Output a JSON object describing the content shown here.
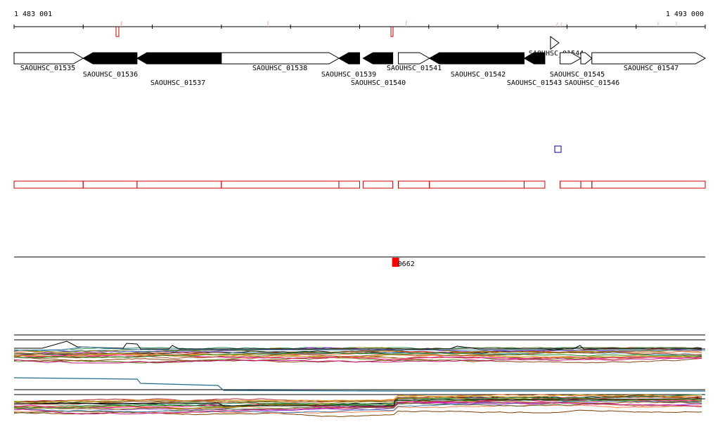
{
  "coordinates": {
    "start": "1 483 001",
    "end": "1 493 000"
  },
  "colors": {
    "gene_forward_fill": "#ffffff",
    "gene_reverse_fill": "#000000",
    "feature_outline": "#cc0000",
    "marker_fill": "#ff0000",
    "small_box": "#0000aa",
    "track_line": "#000000"
  },
  "genes": [
    {
      "name": "SAOUHSC_01535",
      "start": 1483001,
      "end": 1484000,
      "strand": "+"
    },
    {
      "name": "SAOUHSC_01536",
      "start": 1484000,
      "end": 1484780,
      "strand": "-"
    },
    {
      "name": "SAOUHSC_01537",
      "start": 1484780,
      "end": 1486000,
      "strand": "-"
    },
    {
      "name": "SAOUHSC_01538",
      "start": 1486000,
      "end": 1487700,
      "strand": "+"
    },
    {
      "name": "SAOUHSC_01539",
      "start": 1487700,
      "end": 1488000,
      "strand": "-"
    },
    {
      "name": "SAOUHSC_01540",
      "start": 1488050,
      "end": 1488480,
      "strand": "-"
    },
    {
      "name": "SAOUHSC_01541",
      "start": 1488560,
      "end": 1489010,
      "strand": "+"
    },
    {
      "name": "SAOUHSC_01542",
      "start": 1489010,
      "end": 1490380,
      "strand": "-"
    },
    {
      "name": "SAOUHSC_01543",
      "start": 1490380,
      "end": 1490680,
      "strand": "-"
    },
    {
      "name": "SAOUHSC_01544",
      "start": 1490680,
      "end": 1490800,
      "strand": "+"
    },
    {
      "name": "SAOUHSC_01545",
      "start": 1490900,
      "end": 1491200,
      "strand": "+"
    },
    {
      "name": "SAOUHSC_01546",
      "start": 1491200,
      "end": 1491360,
      "strand": "+"
    },
    {
      "name": "SAOUHSC_01547",
      "start": 1491360,
      "end": 1493000,
      "strand": "+"
    }
  ],
  "marker": {
    "label": "0662",
    "position": 1488470
  }
}
